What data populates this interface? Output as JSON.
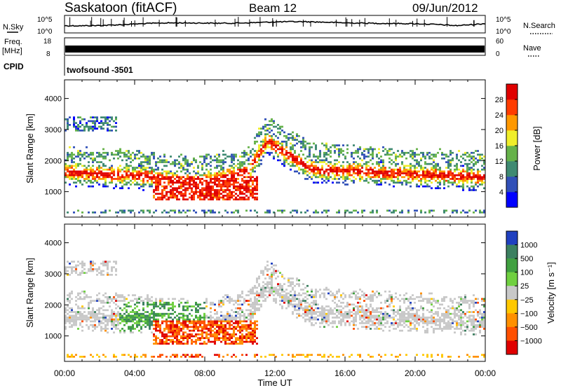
{
  "header": {
    "station": "Saskatoon (fitACF)",
    "beam": "Beam 12",
    "date": "09/Jun/2012"
  },
  "top_panels": {
    "nsky_label": "N.Sky",
    "nsearch_label": "N.Search",
    "nsky_ticks": [
      "10^5",
      "10^0"
    ],
    "nsearch_ticks": [
      "10^5",
      "10^0"
    ],
    "freq_label": "Freq.",
    "freq_unit": "[MHz]",
    "freq_ticks": [
      "18",
      "8"
    ],
    "nave_label": "Nave",
    "nave_ticks": [
      "60",
      "0"
    ],
    "cpid_label": "CPID",
    "cpid_value": "twofsound -3501"
  },
  "chart_data": [
    {
      "type": "heatmap",
      "title": "",
      "ylabel": "Slant Range [km]",
      "xlabel": "",
      "x_ticks": [
        "00:00",
        "04:00",
        "08:00",
        "12:00",
        "16:00",
        "20:00",
        "00:00"
      ],
      "x_range_hours": [
        0,
        24
      ],
      "y_ticks": [
        1000,
        2000,
        3000,
        4000
      ],
      "ylim": [
        180,
        4600
      ],
      "colorbar": {
        "label": "Power [dB]",
        "ticks": [
          "4",
          "8",
          "12",
          "16",
          "20",
          "24",
          "28"
        ],
        "colors": [
          "#0000ff",
          "#3150b8",
          "#3f8a72",
          "#66b24a",
          "#f0ee2a",
          "#ff9800",
          "#ff3c00",
          "#e00000"
        ]
      }
    },
    {
      "type": "heatmap",
      "title": "",
      "ylabel": "Slant Range [km]",
      "xlabel": "Time UT",
      "x_ticks": [
        "00:00",
        "04:00",
        "08:00",
        "12:00",
        "16:00",
        "20:00",
        "00:00"
      ],
      "x_range_hours": [
        0,
        24
      ],
      "y_ticks": [
        1000,
        2000,
        3000,
        4000
      ],
      "ylim": [
        180,
        4600
      ],
      "colorbar": {
        "label": "Velocity [m s⁻¹]",
        "ticks": [
          "1000",
          "500",
          "100",
          "25",
          "−25",
          "−100",
          "−500",
          "−1000"
        ],
        "colors": [
          "#2040c0",
          "#3c8060",
          "#40a040",
          "#70d040",
          "#c8c8c8",
          "#ffc800",
          "#ff9000",
          "#ff5000",
          "#e00000"
        ]
      }
    }
  ]
}
